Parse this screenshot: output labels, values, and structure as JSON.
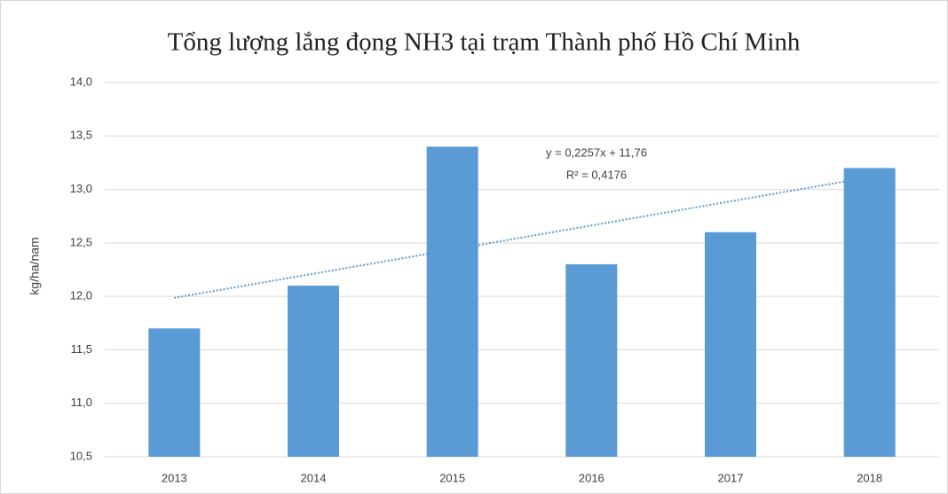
{
  "chart_data": {
    "type": "bar",
    "title": "Tổng lượng lắng đọng NH3 tại trạm Thành phố Hồ Chí Minh",
    "y_label": "kg/ha/nam",
    "categories": [
      "2013",
      "2014",
      "2015",
      "2016",
      "2017",
      "2018"
    ],
    "values": [
      11.7,
      12.1,
      13.4,
      12.3,
      12.6,
      13.2
    ],
    "color": "#5b9bd5",
    "ylim": [
      10.5,
      14.0
    ],
    "yticks": [
      {
        "value": 10.5,
        "label": "10,5"
      },
      {
        "value": 11.0,
        "label": "11,0"
      },
      {
        "value": 11.5,
        "label": "11,5"
      },
      {
        "value": 12.0,
        "label": "12,0"
      },
      {
        "value": 12.5,
        "label": "12,5"
      },
      {
        "value": 13.0,
        "label": "13,0"
      },
      {
        "value": 13.5,
        "label": "13,5"
      },
      {
        "value": 14.0,
        "label": "14,0"
      }
    ],
    "grid": true,
    "trendline": {
      "slope": 0.2257,
      "intercept": 11.76,
      "equation": "y = 0,2257x + 11,76",
      "r_squared": "R² = 0,4176"
    }
  }
}
